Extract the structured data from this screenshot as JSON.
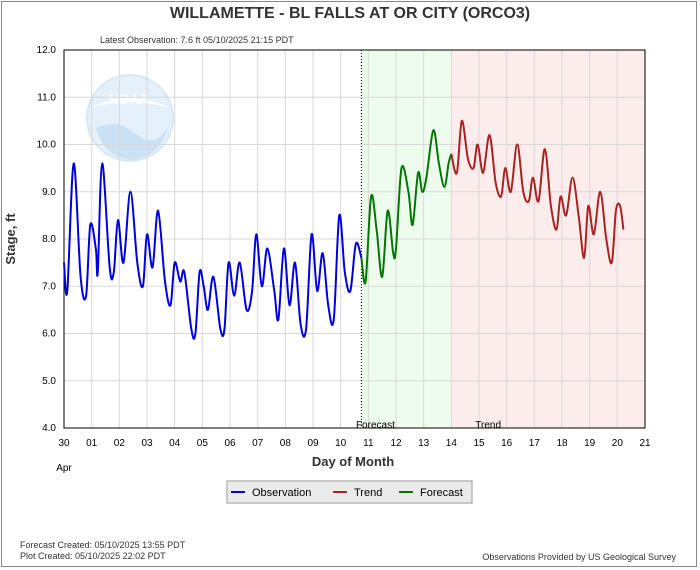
{
  "chart_data": {
    "type": "line",
    "title": "WILLAMETTE - BL FALLS AT OR CITY  (ORCO3)",
    "latest_observation": "Latest Observation: 7.6 ft 05/10/2025 21:15 PDT",
    "ylabel": "Stage, ft",
    "xlabel": "Day of Month",
    "ylim": [
      4.0,
      12.0
    ],
    "y_ticks": [
      "4.0",
      "5.0",
      "6.0",
      "7.0",
      "8.0",
      "9.0",
      "10.0",
      "11.0",
      "12.0"
    ],
    "x_ticks": [
      "30",
      "01",
      "02",
      "03",
      "04",
      "05",
      "06",
      "07",
      "08",
      "09",
      "10",
      "11",
      "12",
      "13",
      "14",
      "15",
      "16",
      "17",
      "18",
      "19",
      "20",
      "21"
    ],
    "x_month_label": "Apr",
    "x_start": "2025-04-30",
    "grid": true,
    "forecast_label": "Forecast",
    "trend_label": "Trend",
    "legend": {
      "placement": "bottom",
      "entries": [
        {
          "name": "Observation",
          "color": "#0000dd"
        },
        {
          "name": "Trend",
          "color": "#aa2222"
        },
        {
          "name": "Forecast",
          "color": "#007700"
        }
      ]
    },
    "series": [
      {
        "name": "Observation",
        "color": "#0000dd",
        "points": [
          [
            0.0,
            7.5
          ],
          [
            0.12,
            6.9
          ],
          [
            0.35,
            9.6
          ],
          [
            0.6,
            7.2
          ],
          [
            0.8,
            6.8
          ],
          [
            0.95,
            8.3
          ],
          [
            1.15,
            7.8
          ],
          [
            1.22,
            7.3
          ],
          [
            1.38,
            9.6
          ],
          [
            1.65,
            7.4
          ],
          [
            1.8,
            7.3
          ],
          [
            1.95,
            8.4
          ],
          [
            2.15,
            7.5
          ],
          [
            2.4,
            9.0
          ],
          [
            2.65,
            7.5
          ],
          [
            2.85,
            7.0
          ],
          [
            3.0,
            8.1
          ],
          [
            3.2,
            7.4
          ],
          [
            3.4,
            8.6
          ],
          [
            3.65,
            7.1
          ],
          [
            3.85,
            6.6
          ],
          [
            4.0,
            7.5
          ],
          [
            4.2,
            7.1
          ],
          [
            4.35,
            7.3
          ],
          [
            4.6,
            6.1
          ],
          [
            4.75,
            6.0
          ],
          [
            4.9,
            7.3
          ],
          [
            5.05,
            7.0
          ],
          [
            5.2,
            6.5
          ],
          [
            5.4,
            7.2
          ],
          [
            5.65,
            6.1
          ],
          [
            5.8,
            6.1
          ],
          [
            5.95,
            7.5
          ],
          [
            6.15,
            6.8
          ],
          [
            6.35,
            7.5
          ],
          [
            6.6,
            6.5
          ],
          [
            6.8,
            6.9
          ],
          [
            6.95,
            8.1
          ],
          [
            7.15,
            7.0
          ],
          [
            7.35,
            7.8
          ],
          [
            7.6,
            6.9
          ],
          [
            7.75,
            6.3
          ],
          [
            7.95,
            7.8
          ],
          [
            8.15,
            6.6
          ],
          [
            8.35,
            7.5
          ],
          [
            8.55,
            6.2
          ],
          [
            8.75,
            6.1
          ],
          [
            8.95,
            8.1
          ],
          [
            9.15,
            6.9
          ],
          [
            9.35,
            7.7
          ],
          [
            9.55,
            6.6
          ],
          [
            9.75,
            6.3
          ],
          [
            9.95,
            8.5
          ],
          [
            10.15,
            7.3
          ],
          [
            10.35,
            6.9
          ],
          [
            10.55,
            7.9
          ],
          [
            10.75,
            7.6
          ]
        ]
      },
      {
        "name": "Forecast",
        "color": "#007700",
        "points": [
          [
            10.75,
            7.6
          ],
          [
            10.9,
            7.1
          ],
          [
            11.1,
            8.9
          ],
          [
            11.3,
            8.2
          ],
          [
            11.5,
            7.2
          ],
          [
            11.7,
            8.6
          ],
          [
            11.9,
            7.7
          ],
          [
            12.0,
            7.8
          ],
          [
            12.2,
            9.5
          ],
          [
            12.45,
            9.0
          ],
          [
            12.6,
            8.3
          ],
          [
            12.8,
            9.4
          ],
          [
            12.95,
            9.0
          ],
          [
            13.1,
            9.3
          ],
          [
            13.35,
            10.3
          ],
          [
            13.55,
            9.6
          ],
          [
            13.75,
            9.1
          ],
          [
            13.9,
            9.6
          ],
          [
            14.0,
            9.8
          ]
        ]
      },
      {
        "name": "Trend",
        "color": "#aa2222",
        "points": [
          [
            14.0,
            9.8
          ],
          [
            14.2,
            9.4
          ],
          [
            14.38,
            10.5
          ],
          [
            14.6,
            9.7
          ],
          [
            14.8,
            9.5
          ],
          [
            14.95,
            10.0
          ],
          [
            15.15,
            9.4
          ],
          [
            15.38,
            10.2
          ],
          [
            15.6,
            9.2
          ],
          [
            15.8,
            8.9
          ],
          [
            15.95,
            9.5
          ],
          [
            16.15,
            9.0
          ],
          [
            16.38,
            10.0
          ],
          [
            16.6,
            9.0
          ],
          [
            16.8,
            8.8
          ],
          [
            16.95,
            9.3
          ],
          [
            17.15,
            8.8
          ],
          [
            17.38,
            9.9
          ],
          [
            17.6,
            8.7
          ],
          [
            17.8,
            8.2
          ],
          [
            17.95,
            8.9
          ],
          [
            18.15,
            8.5
          ],
          [
            18.38,
            9.3
          ],
          [
            18.6,
            8.5
          ],
          [
            18.8,
            7.6
          ],
          [
            18.95,
            8.7
          ],
          [
            19.15,
            8.1
          ],
          [
            19.38,
            9.0
          ],
          [
            19.6,
            8.0
          ],
          [
            19.8,
            7.5
          ],
          [
            19.95,
            8.6
          ],
          [
            20.1,
            8.7
          ],
          [
            20.22,
            8.2
          ]
        ]
      }
    ],
    "regions": {
      "forecast_start": 10.75,
      "forecast_end": 14.0,
      "trend_end": 21.0,
      "forecast_color": "#eefcee",
      "trend_color": "#fcecec"
    }
  },
  "footer": {
    "forecast_created": "Forecast Created: 05/10/2025 13:55 PDT",
    "plot_created": "Plot Created: 05/10/2025 22:02 PDT",
    "provider": "Observations Provided by US Geological Survey"
  },
  "logo": {
    "text": "NOAA",
    "icon": "noaa-logo-icon",
    "color": "#bcd8f0"
  }
}
